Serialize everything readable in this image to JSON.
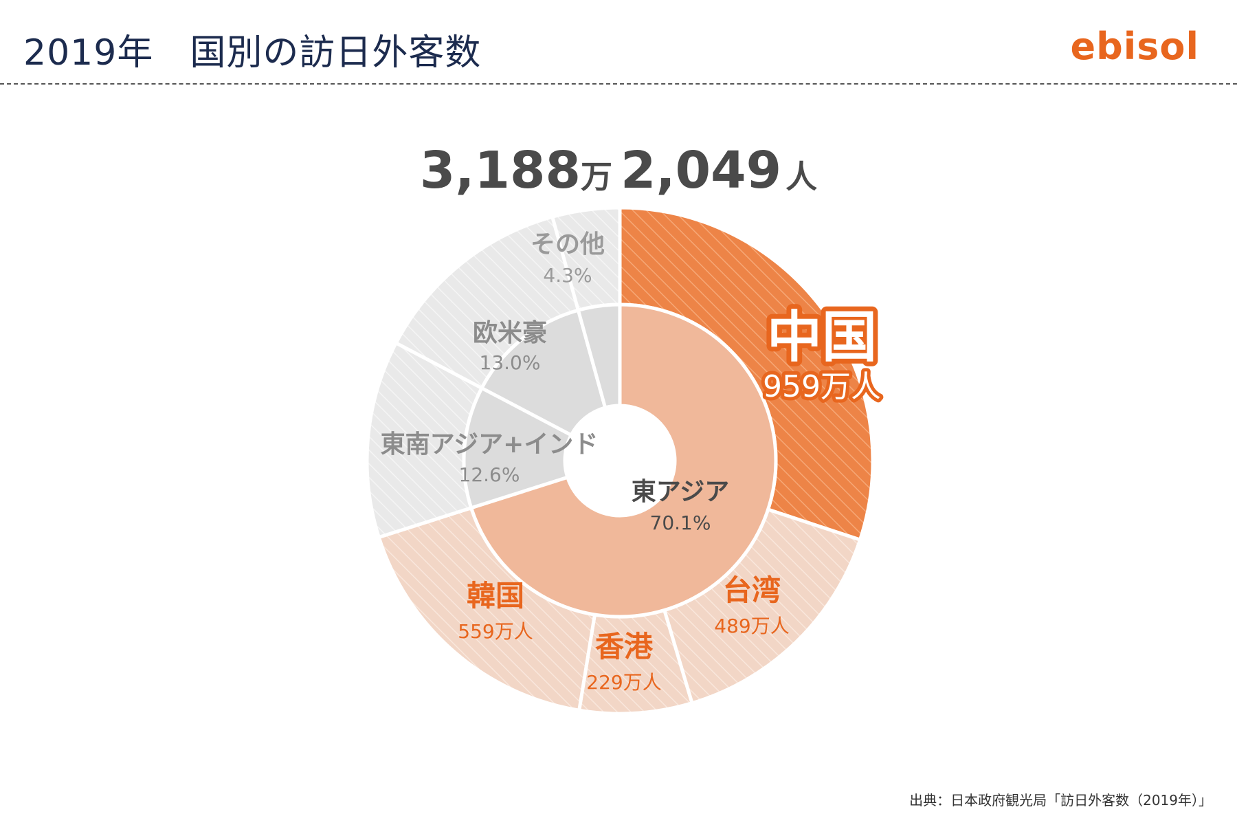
{
  "header": {
    "title": "2019年　国別の訪日外客数",
    "logo": "ebisol"
  },
  "total": {
    "number_1": "3,188",
    "unit_1": "万",
    "number_2": "2,049",
    "unit_2": "人"
  },
  "source": "出典：日本政府観光局「訪日外客数（2019年）」",
  "colors": {
    "title": "#1c2b4e",
    "accent": "#e8661e",
    "china": "#ef8a4f",
    "region_east_asia": "#f0b89a",
    "outer_east_asia": "#f3d9cb",
    "gray_inner": "#dcdcdc",
    "gray_outer": "#ececec"
  },
  "chart_data": {
    "type": "donut",
    "title": "",
    "inner_ring": [
      {
        "label": "東アジア",
        "value_label": "70.1%",
        "value": 70.1
      },
      {
        "label": "東南アジア+インド",
        "value_label": "12.6%",
        "value": 12.6
      },
      {
        "label": "欧米豪",
        "value_label": "13.0%",
        "value": 13.0
      },
      {
        "label": "その他",
        "value_label": "4.3%",
        "value": 4.3
      }
    ],
    "outer_ring": [
      {
        "label": "中国",
        "value_label": "959万人",
        "value": 959,
        "group": "東アジア"
      },
      {
        "label": "台湾",
        "value_label": "489万人",
        "value": 489,
        "group": "東アジア"
      },
      {
        "label": "香港",
        "value_label": "229万人",
        "value": 229,
        "group": "東アジア"
      },
      {
        "label": "韓国",
        "value_label": "559万人",
        "value": 559,
        "group": "東アジア"
      },
      {
        "label": "",
        "value_label": "",
        "value": 12.6,
        "group": "東南アジア+インド"
      },
      {
        "label": "",
        "value_label": "",
        "value": 13.0,
        "group": "欧米豪"
      },
      {
        "label": "",
        "value_label": "",
        "value": 4.3,
        "group": "その他"
      }
    ]
  }
}
